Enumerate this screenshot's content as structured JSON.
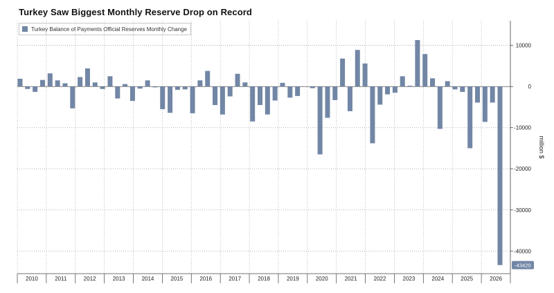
{
  "chart_data": {
    "type": "bar",
    "title": "Turkey Saw Biggest Monthly Reserve Drop on Record",
    "series": [
      {
        "name": "Turkey Balance of Payments Official Reserves Monthly Change",
        "values": [
          1900,
          -600,
          -1300,
          1600,
          3200,
          1500,
          800,
          -5300,
          2300,
          4400,
          1000,
          -600,
          2500,
          -2900,
          600,
          -3500,
          -500,
          1500,
          -200,
          -5500,
          -6400,
          -800,
          -700,
          -6500,
          1500,
          3800,
          -4500,
          -6800,
          -2400,
          3100,
          1000,
          -8500,
          -4500,
          -6800,
          -3400,
          900,
          -2700,
          -2300,
          0,
          -400,
          -16500,
          -7600,
          -3300,
          6800,
          -6000,
          8900,
          5600,
          -13800,
          -4400,
          -1900,
          -1500,
          2500,
          200,
          11300,
          7900,
          2000,
          -10300,
          1300,
          -700,
          -1300,
          -15000,
          -3900,
          -8600,
          -3900,
          -43420
        ]
      }
    ],
    "x_labels": [
      "2010",
      "2011",
      "2012",
      "2013",
      "2014",
      "2015",
      "2016",
      "2017",
      "2018",
      "2019",
      "2020",
      "2021",
      "2022",
      "2023",
      "2024",
      "2025",
      "2026"
    ],
    "y_ticks": [
      10000,
      0,
      -10000,
      -20000,
      -30000,
      -40000
    ],
    "ylim": [
      -45500,
      16000
    ],
    "ylabel": "million $",
    "last_value_label": "-43420",
    "grid": true,
    "colors": {
      "bar": "#7286a5",
      "callout": "#7286a5"
    }
  }
}
